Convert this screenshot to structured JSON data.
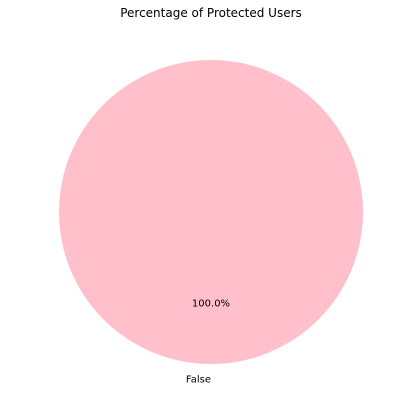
{
  "chart_data": {
    "type": "pie",
    "title": "Percentage of Protected Users",
    "labels": [
      "False"
    ],
    "values": [
      100.0
    ],
    "percent_labels": [
      "100.0%"
    ],
    "colors": [
      "#ffc0cb"
    ],
    "start_angle_deg": 90,
    "legend": "none"
  }
}
